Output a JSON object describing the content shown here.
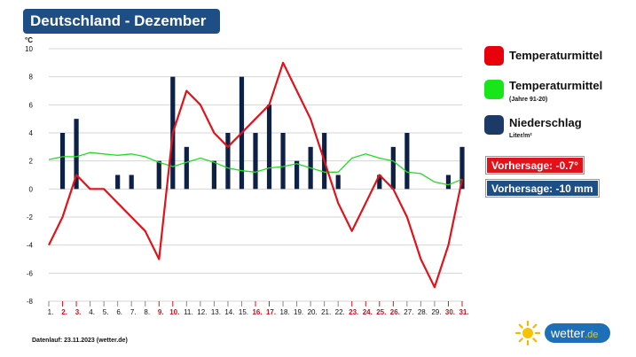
{
  "title": "Deutschland - Dezember",
  "footer": "Datenlauf: 23.11.2023 (wetter.de)",
  "logo": {
    "text": "wetter",
    "suffix": ".de"
  },
  "legend": {
    "temp_mean": {
      "label": "Temperaturmittel",
      "color": "#e8000b"
    },
    "temp_clim": {
      "label": "Temperaturmittel",
      "sub": "(Jahre 91-20)",
      "color": "#19e619"
    },
    "precip": {
      "label": "Niederschlag",
      "sub": "Liter/m²",
      "color": "#1c3a66"
    }
  },
  "forecast": {
    "temp": {
      "label": "Vorhersage: -0.7°",
      "color": "#e0121a"
    },
    "precip": {
      "label": "Vorhersage: -10 mm",
      "color": "#1d4f86"
    }
  },
  "chart_data": {
    "type": "bar+line",
    "ylabel": "°C",
    "ylim": [
      -8,
      10
    ],
    "yticks": [
      -8,
      -6,
      -4,
      -2,
      0,
      2,
      4,
      6,
      8,
      10
    ],
    "grid": "horizontal",
    "categories": [
      "1.",
      "2.",
      "3.",
      "4.",
      "5.",
      "6.",
      "7.",
      "8.",
      "9.",
      "10.",
      "11.",
      "12.",
      "13.",
      "14.",
      "15.",
      "16.",
      "17.",
      "18.",
      "19.",
      "20.",
      "21.",
      "22.",
      "23.",
      "24.",
      "25.",
      "26.",
      "27.",
      "28.",
      "29.",
      "30.",
      "31."
    ],
    "highlight_days": [
      "2.",
      "3.",
      "9.",
      "10.",
      "16.",
      "17.",
      "23.",
      "24.",
      "25.",
      "26.",
      "30.",
      "31."
    ],
    "series": [
      {
        "name": "Niederschlag",
        "type": "bar",
        "color": "#0d2147",
        "values": [
          0,
          4,
          5,
          0,
          0,
          1,
          1,
          0,
          2,
          8,
          3,
          0,
          2,
          4,
          8,
          4,
          6,
          4,
          2,
          3,
          4,
          1,
          0,
          0,
          1,
          3,
          4,
          0,
          0,
          1,
          3
        ]
      },
      {
        "name": "Temperaturmittel",
        "type": "line",
        "color": "#e0121a",
        "values": [
          -4,
          -2,
          1,
          0,
          0,
          -1,
          -2,
          -3,
          -5,
          4,
          7,
          6,
          4,
          3,
          4,
          5,
          6,
          9,
          7,
          5,
          2,
          -1,
          -3,
          -1,
          1,
          0,
          -2,
          -5,
          -7,
          -4,
          0.7
        ]
      },
      {
        "name": "Temperaturmittel (Jahre 91-20)",
        "type": "line",
        "color": "#22dd22",
        "values": [
          2.1,
          2.3,
          2.3,
          2.6,
          2.5,
          2.4,
          2.5,
          2.3,
          1.9,
          1.6,
          1.9,
          2.2,
          1.9,
          1.5,
          1.3,
          1.2,
          1.5,
          1.6,
          1.8,
          1.5,
          1.2,
          1.2,
          2.2,
          2.5,
          2.2,
          2.0,
          1.2,
          1.1,
          0.5,
          0.3,
          0.7
        ]
      }
    ]
  }
}
